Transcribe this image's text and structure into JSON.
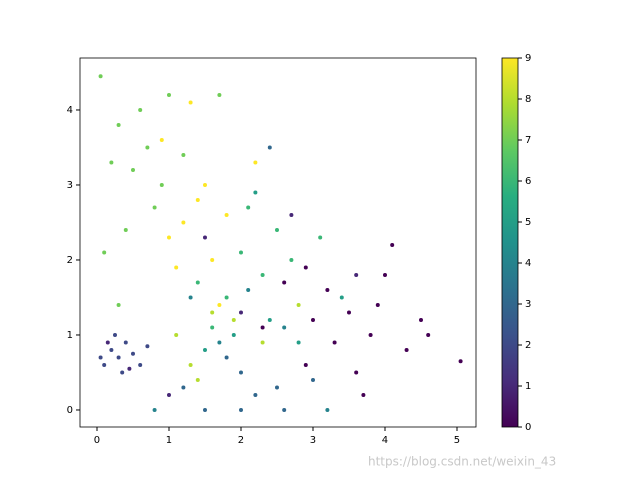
{
  "chart_data": {
    "type": "scatter",
    "x": [
      0.2,
      0.3,
      0.1,
      0.4,
      0.5,
      0.25,
      0.6,
      0.35,
      0.7,
      0.15,
      0.05,
      0.45,
      3.5,
      3.8,
      3.2,
      4.0,
      3.6,
      4.3,
      2.9,
      3.9,
      4.5,
      3.3,
      2.6,
      4.1,
      3.7,
      5.05,
      4.6,
      3.0,
      0.5,
      0.7,
      0.3,
      0.9,
      0.6,
      1.0,
      0.2,
      0.05,
      0.8,
      1.2,
      0.4,
      1.7,
      0.1,
      0.3,
      1.2,
      1.4,
      1.0,
      1.6,
      0.9,
      1.3,
      1.8,
      1.5,
      1.1,
      2.2,
      1.7,
      2.0,
      2.3,
      1.8,
      2.5,
      1.6,
      2.7,
      1.4,
      2.1,
      3.1,
      1.9,
      2.4,
      2.8,
      1.5,
      2.2,
      3.4,
      2.0,
      2.5,
      1.5,
      2.0,
      2.6,
      1.2,
      3.0,
      1.8,
      2.4,
      2.2,
      1.3,
      1.6,
      1.9,
      1.1,
      2.3,
      1.4,
      2.8,
      1.7,
      2.1,
      1.3,
      2.6,
      0.8,
      3.2,
      1.5,
      2.0,
      2.7,
      1.0,
      3.6,
      2.3,
      2.9
    ],
    "y": [
      0.8,
      0.7,
      0.6,
      0.9,
      0.75,
      1.0,
      0.6,
      0.5,
      0.85,
      0.9,
      0.7,
      0.55,
      1.3,
      1.0,
      1.6,
      1.8,
      0.5,
      0.8,
      1.9,
      1.4,
      1.2,
      0.9,
      1.7,
      2.2,
      0.2,
      0.65,
      1.0,
      1.2,
      3.2,
      3.5,
      3.8,
      3.0,
      4.0,
      4.2,
      3.3,
      4.45,
      2.7,
      3.4,
      2.4,
      4.2,
      2.1,
      1.4,
      2.5,
      2.8,
      2.3,
      2.0,
      3.6,
      4.1,
      2.6,
      3.0,
      1.9,
      3.3,
      1.4,
      2.1,
      1.8,
      1.5,
      2.4,
      1.1,
      2.0,
      1.7,
      2.7,
      2.3,
      1.0,
      1.2,
      0.9,
      0.8,
      2.9,
      1.5,
      0.5,
      0.3,
      0.0,
      0.0,
      0.0,
      0.3,
      0.4,
      0.7,
      3.5,
      0.2,
      0.6,
      1.3,
      1.2,
      1.0,
      0.9,
      0.4,
      1.4,
      0.9,
      1.6,
      1.5,
      1.1,
      0.0,
      0.0,
      2.3,
      1.3,
      2.6,
      0.2,
      1.8,
      1.1,
      0.6
    ],
    "c": [
      2,
      2,
      2,
      2,
      2,
      2,
      2,
      2,
      2,
      1,
      2,
      1,
      0,
      0,
      0,
      0,
      0,
      0,
      0,
      0,
      0,
      0,
      0,
      0,
      0,
      0,
      0,
      0,
      7,
      7,
      7,
      7,
      7,
      7,
      7,
      7,
      7,
      7,
      7,
      7,
      7,
      7,
      9,
      9,
      9,
      9,
      9,
      9,
      9,
      9,
      9,
      9,
      9,
      6,
      6,
      6,
      6,
      6,
      6,
      6,
      6,
      6,
      5,
      5,
      5,
      5,
      5,
      5,
      3,
      3,
      3,
      3,
      3,
      3,
      3,
      3,
      3,
      3,
      8,
      8,
      8,
      8,
      8,
      8,
      8,
      4,
      4,
      4,
      4,
      4,
      4,
      1,
      1,
      1,
      1,
      1,
      0,
      0
    ],
    "colormap": "viridis",
    "clim": [
      0,
      9
    ],
    "cticks": [
      0,
      1,
      2,
      3,
      4,
      5,
      6,
      7,
      8,
      9
    ],
    "xlim": [
      -0.236,
      5.264
    ],
    "xticks": [
      0,
      1,
      2,
      3,
      4,
      5
    ],
    "ylim": [
      -0.227,
      4.693
    ],
    "yticks": [
      0,
      1,
      2,
      3,
      4
    ],
    "watermark": "https://blog.csdn.net/weixin_43"
  }
}
